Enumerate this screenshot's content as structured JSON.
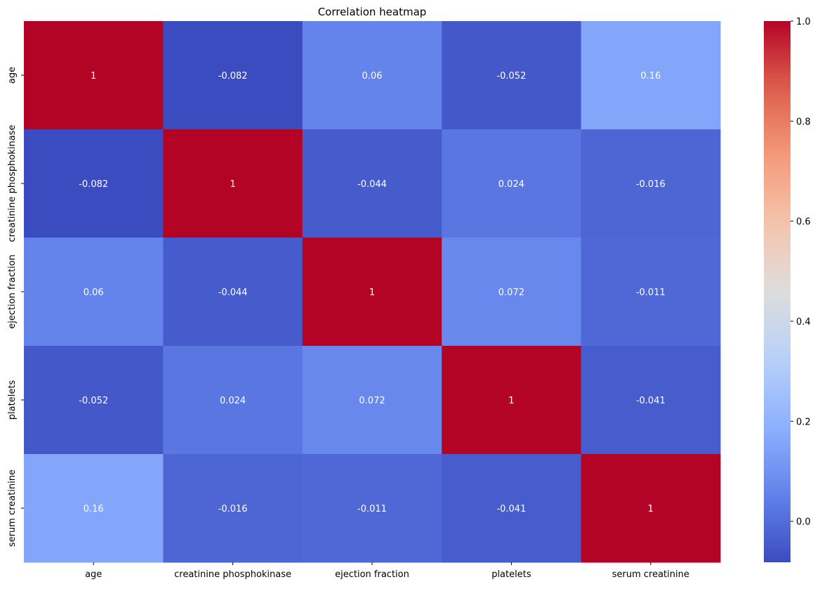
{
  "chart_data": {
    "type": "heatmap",
    "title": "Correlation heatmap",
    "xlabel": "",
    "ylabel": "",
    "x_labels": [
      "age",
      "creatinine phosphokinase",
      "ejection fraction",
      "platelets",
      "serum creatinine"
    ],
    "y_labels": [
      "age",
      "creatinine phosphokinase",
      "ejection fraction",
      "platelets",
      "serum creatinine"
    ],
    "values": [
      [
        1,
        -0.082,
        0.06,
        -0.052,
        0.16
      ],
      [
        -0.082,
        1,
        -0.044,
        0.024,
        -0.016
      ],
      [
        0.06,
        -0.044,
        1,
        0.072,
        -0.011
      ],
      [
        -0.052,
        0.024,
        0.072,
        1,
        -0.041
      ],
      [
        0.16,
        -0.016,
        -0.011,
        -0.041,
        1
      ]
    ],
    "annotations": [
      [
        "1",
        "-0.082",
        "0.06",
        "-0.052",
        "0.16"
      ],
      [
        "-0.082",
        "1",
        "-0.044",
        "0.024",
        "-0.016"
      ],
      [
        "0.06",
        "-0.044",
        "1",
        "0.072",
        "-0.011"
      ],
      [
        "-0.052",
        "0.024",
        "0.072",
        "1",
        "-0.041"
      ],
      [
        "0.16",
        "-0.016",
        "-0.011",
        "-0.041",
        "1"
      ]
    ],
    "colormap": "coolwarm",
    "vmin": -0.082,
    "vmax": 1,
    "colorbar_ticks": [
      "0.0",
      "0.2",
      "0.4",
      "0.6",
      "0.8",
      "1.0"
    ],
    "colorbar_tick_values": [
      0,
      0.2,
      0.4,
      0.6,
      0.8,
      1.0
    ]
  }
}
